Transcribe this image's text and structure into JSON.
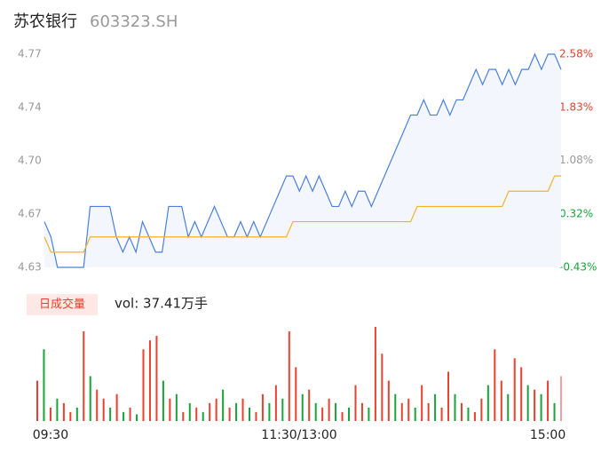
{
  "chart_data": [
    {
      "type": "line",
      "title": "苏农银行",
      "subtitle": "603323.SH",
      "series": [
        {
          "name": "price",
          "color": "#4a7fe0",
          "values": [
            4.66,
            4.65,
            4.63,
            4.63,
            4.63,
            4.63,
            4.63,
            4.67,
            4.67,
            4.67,
            4.67,
            4.65,
            4.64,
            4.65,
            4.64,
            4.66,
            4.65,
            4.64,
            4.64,
            4.67,
            4.67,
            4.67,
            4.65,
            4.66,
            4.65,
            4.66,
            4.67,
            4.66,
            4.65,
            4.65,
            4.66,
            4.65,
            4.66,
            4.65,
            4.66,
            4.67,
            4.68,
            4.69,
            4.69,
            4.68,
            4.69,
            4.68,
            4.69,
            4.68,
            4.67,
            4.67,
            4.68,
            4.67,
            4.68,
            4.68,
            4.67,
            4.68,
            4.69,
            4.7,
            4.71,
            4.72,
            4.73,
            4.73,
            4.74,
            4.73,
            4.73,
            4.74,
            4.73,
            4.74,
            4.74,
            4.75,
            4.76,
            4.75,
            4.76,
            4.76,
            4.75,
            4.76,
            4.75,
            4.76,
            4.76,
            4.77,
            4.76,
            4.77,
            4.77,
            4.76
          ]
        },
        {
          "name": "average",
          "color": "#f0b429",
          "values": [
            4.65,
            4.64,
            4.64,
            4.64,
            4.64,
            4.64,
            4.64,
            4.65,
            4.65,
            4.65,
            4.65,
            4.65,
            4.65,
            4.65,
            4.65,
            4.65,
            4.65,
            4.65,
            4.65,
            4.65,
            4.65,
            4.65,
            4.65,
            4.65,
            4.65,
            4.65,
            4.65,
            4.65,
            4.65,
            4.65,
            4.65,
            4.65,
            4.65,
            4.65,
            4.65,
            4.65,
            4.65,
            4.65,
            4.66,
            4.66,
            4.66,
            4.66,
            4.66,
            4.66,
            4.66,
            4.66,
            4.66,
            4.66,
            4.66,
            4.66,
            4.66,
            4.66,
            4.66,
            4.66,
            4.66,
            4.66,
            4.66,
            4.67,
            4.67,
            4.67,
            4.67,
            4.67,
            4.67,
            4.67,
            4.67,
            4.67,
            4.67,
            4.67,
            4.67,
            4.67,
            4.67,
            4.68,
            4.68,
            4.68,
            4.68,
            4.68,
            4.68,
            4.68,
            4.69,
            4.69
          ]
        }
      ],
      "ylim": [
        4.63,
        4.77
      ],
      "yticks": [
        4.77,
        {
          "value": 4.735,
          "label": "4.74"
        },
        {
          "value": 4.7,
          "label": "4.70"
        },
        {
          "value": 4.665,
          "label": "4.67"
        },
        4.63
      ],
      "y2lim": [
        -0.43,
        2.58
      ],
      "y2ticks": [
        {
          "value": 2.58,
          "label": "2.58%"
        },
        {
          "value": 1.83,
          "label": "1.83%"
        },
        {
          "value": 1.08,
          "label": "1.08%"
        },
        {
          "value": 0.32,
          "label": "0.32%"
        },
        {
          "value": -0.43,
          "label": "-0.43%"
        }
      ]
    },
    {
      "type": "bar",
      "legend": "日成交量",
      "volume_label": "vol: 37.41万手",
      "values": [
        9000,
        16000,
        3000,
        5000,
        4000,
        2000,
        3000,
        20000,
        10000,
        7000,
        5000,
        3000,
        6000,
        2000,
        3000,
        1500,
        16000,
        18000,
        19000,
        9000,
        5000,
        6000,
        2000,
        4000,
        3000,
        2000,
        4000,
        5000,
        7000,
        3000,
        4000,
        5000,
        3000,
        2000,
        6000,
        4000,
        8000,
        5000,
        20000,
        12000,
        6000,
        7000,
        4000,
        3000,
        5000,
        4000,
        2000,
        3000,
        8000,
        4000,
        3000,
        21000,
        15000,
        9000,
        6000,
        4000,
        5000,
        3000,
        8000,
        4000,
        6000,
        3000,
        11000,
        6000,
        4000,
        3000,
        2000,
        5000,
        8000,
        16000,
        9000,
        6000,
        14000,
        12000,
        8000,
        7000,
        6000,
        9000,
        4000,
        10000
      ],
      "colors": [
        "#e8412f",
        "#1aa33a",
        "#e8412f",
        "#1aa33a",
        "#e8412f",
        "#e8412f",
        "#1aa33a",
        "#e8412f",
        "#1aa33a",
        "#e8412f",
        "#e8412f",
        "#1aa33a",
        "#e8412f",
        "#1aa33a",
        "#e8412f",
        "#1aa33a",
        "#e8412f",
        "#e8412f",
        "#e8412f",
        "#1aa33a",
        "#e8412f",
        "#1aa33a",
        "#e8412f",
        "#1aa33a",
        "#e8412f",
        "#1aa33a",
        "#e8412f",
        "#e8412f",
        "#1aa33a",
        "#e8412f",
        "#1aa33a",
        "#e8412f",
        "#1aa33a",
        "#e8412f",
        "#e8412f",
        "#1aa33a",
        "#e8412f",
        "#1aa33a",
        "#e8412f",
        "#e8412f",
        "#1aa33a",
        "#e8412f",
        "#1aa33a",
        "#e8412f",
        "#e8412f",
        "#1aa33a",
        "#e8412f",
        "#1aa33a",
        "#e8412f",
        "#e8412f",
        "#1aa33a",
        "#e8412f",
        "#e8412f",
        "#e8412f",
        "#1aa33a",
        "#e8412f",
        "#e8412f",
        "#1aa33a",
        "#e8412f",
        "#e8412f",
        "#1aa33a",
        "#e8412f",
        "#e8412f",
        "#1aa33a",
        "#e8412f",
        "#1aa33a",
        "#e8412f",
        "#e8412f",
        "#1aa33a",
        "#e8412f",
        "#e8412f",
        "#1aa33a",
        "#e8412f",
        "#e8412f",
        "#1aa33a",
        "#e8412f",
        "#1aa33a",
        "#e8412f",
        "#1aa33a",
        "#f0a0a0"
      ],
      "ylim": [
        0,
        21000
      ],
      "xlim": [
        0,
        79
      ],
      "xticks": [
        {
          "value": 2,
          "label": "09:30"
        },
        {
          "value": 39.5,
          "label": "11:30/13:00"
        },
        {
          "value": 77,
          "label": "15:00"
        }
      ]
    }
  ]
}
